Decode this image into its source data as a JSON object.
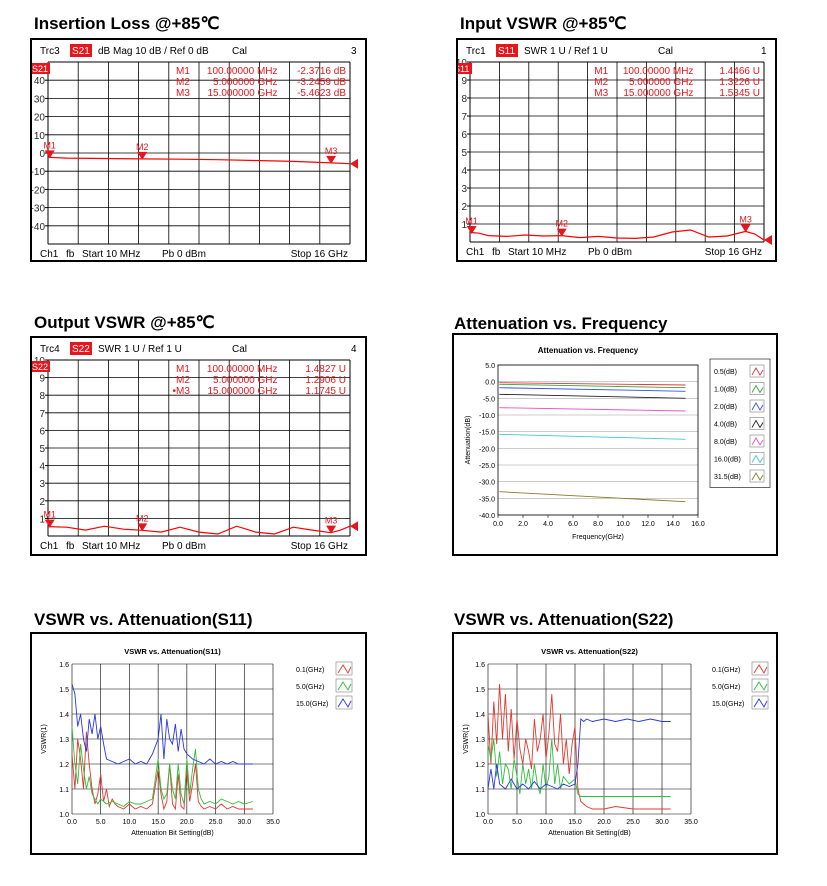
{
  "colors": {
    "trace": "#ff0000",
    "marker": "#e8161c",
    "grid": "#000000",
    "vna_tick": "#2a2a2a",
    "lut_series": [
      "#e3382f",
      "#2fbf3a",
      "#2a37e6"
    ],
    "att_series": [
      "#e5333a",
      "#2fa43a",
      "#3650e6",
      "#222222",
      "#e84fd2",
      "#3cc9d6",
      "#8a7a2a"
    ]
  },
  "panels": [
    {
      "title": "Insertion Loss @+85℃",
      "chart_data": {
        "type": "line",
        "header": {
          "trace": "Trc3",
          "param": "S21",
          "fmt": "dB Mag",
          "scale": "10 dB /",
          "ref": "Ref 0 dB",
          "cal": "Cal",
          "chan": "3"
        },
        "y_ticks": [
          "40",
          "30",
          "20",
          "10",
          "0",
          "-10",
          "-20",
          "-30",
          "-40"
        ],
        "ylim": [
          -50,
          50
        ],
        "xlim": [
          0.01,
          16
        ],
        "x_unit": "GHz",
        "trace": [
          [
            0.01,
            -2.37
          ],
          [
            1,
            -2.8
          ],
          [
            3,
            -3.0
          ],
          [
            5,
            -3.25
          ],
          [
            7,
            -3.4
          ],
          [
            9,
            -3.7
          ],
          [
            11,
            -4.1
          ],
          [
            13,
            -4.6
          ],
          [
            15,
            -5.46
          ],
          [
            16,
            -5.9
          ]
        ],
        "markers": [
          {
            "name": "M1",
            "label": "M1",
            "x": "100.00000 MHz",
            "y": "-2.3716 dB",
            "xv": 0.1,
            "yv": -2.37
          },
          {
            "name": "M2",
            "label": "M2",
            "x": "5.000000 GHz",
            "y": "-3.2459 dB",
            "xv": 5,
            "yv": -3.25
          },
          {
            "name": "M3",
            "label": "M3",
            "x": "15.000000 GHz",
            "y": "-5.4623 dB",
            "xv": 15,
            "yv": -5.46
          }
        ],
        "footer": {
          "ch": "Ch1",
          "fb": "fb",
          "start": "Start 10 MHz",
          "pb": "Pb 0 dBm",
          "stop": "Stop 16 GHz"
        }
      }
    },
    {
      "title": "Input VSWR @+85℃",
      "chart_data": {
        "type": "line",
        "header": {
          "trace": "Trc1",
          "param": "S11",
          "fmt": "SWR",
          "scale": "1 U /",
          "ref": "Ref 1 U",
          "cal": "Cal",
          "chan": "1"
        },
        "y_ticks": [
          "10",
          "9",
          "8",
          "7",
          "6",
          "5",
          "4",
          "3",
          "2",
          "1"
        ],
        "ylim": [
          1,
          10
        ],
        "xlim": [
          0.01,
          16
        ],
        "x_unit": "GHz",
        "trace": [
          [
            0.01,
            1.48
          ],
          [
            0.5,
            1.44
          ],
          [
            1,
            1.32
          ],
          [
            2,
            1.28
          ],
          [
            3,
            1.35
          ],
          [
            4,
            1.3
          ],
          [
            5,
            1.32
          ],
          [
            6,
            1.22
          ],
          [
            7,
            1.28
          ],
          [
            8,
            1.2
          ],
          [
            9,
            1.18
          ],
          [
            10,
            1.25
          ],
          [
            11,
            1.5
          ],
          [
            12,
            1.6
          ],
          [
            13,
            1.25
          ],
          [
            14,
            1.3
          ],
          [
            15,
            1.53
          ],
          [
            15.5,
            1.4
          ],
          [
            16,
            1.1
          ]
        ],
        "markers": [
          {
            "name": "M1",
            "label": "M1",
            "x": "100.00000 MHz",
            "y": "1.4466 U",
            "xv": 0.1,
            "yv": 1.45
          },
          {
            "name": "M2",
            "label": "M2",
            "x": "5.000000 GHz",
            "y": "1.3226 U",
            "xv": 5,
            "yv": 1.32
          },
          {
            "name": "M3",
            "label": "M3",
            "x": "15.000000 GHz",
            "y": "1.5345 U",
            "xv": 15,
            "yv": 1.53
          }
        ],
        "footer": {
          "ch": "Ch1",
          "fb": "fb",
          "start": "Start 10 MHz",
          "pb": "Pb 0 dBm",
          "stop": "Stop 16 GHz"
        }
      }
    },
    {
      "title": "Output VSWR @+85℃",
      "chart_data": {
        "type": "line",
        "header": {
          "trace": "Trc4",
          "param": "S22",
          "fmt": "SWR",
          "scale": "1 U /",
          "ref": "Ref 1 U",
          "cal": "Cal",
          "chan": "4"
        },
        "y_ticks": [
          "10",
          "9",
          "8",
          "7",
          "6",
          "5",
          "4",
          "3",
          "2",
          "1"
        ],
        "ylim": [
          1,
          10
        ],
        "xlim": [
          0.01,
          16
        ],
        "x_unit": "GHz",
        "trace": [
          [
            0.01,
            1.48
          ],
          [
            1,
            1.45
          ],
          [
            2,
            1.3
          ],
          [
            3,
            1.5
          ],
          [
            4,
            1.35
          ],
          [
            5,
            1.29
          ],
          [
            6,
            1.2
          ],
          [
            7,
            1.45
          ],
          [
            8,
            1.2
          ],
          [
            9,
            1.1
          ],
          [
            10,
            1.5
          ],
          [
            11,
            1.2
          ],
          [
            12,
            1.1
          ],
          [
            13,
            1.45
          ],
          [
            14,
            1.3
          ],
          [
            15,
            1.17
          ],
          [
            15.5,
            1.3
          ],
          [
            16,
            1.5
          ]
        ],
        "markers": [
          {
            "name": "M1",
            "label": "M1",
            "x": "100.00000 MHz",
            "y": "1.4827 U",
            "xv": 0.1,
            "yv": 1.48
          },
          {
            "name": "M2",
            "label": "M2",
            "x": "5.000000 GHz",
            "y": "1.2906 U",
            "xv": 5,
            "yv": 1.29
          },
          {
            "name": "M3",
            "label": "•M3",
            "x": "15.000000 GHz",
            "y": "1.1745 U",
            "xv": 15,
            "yv": 1.17
          }
        ],
        "footer": {
          "ch": "Ch1",
          "fb": "fb",
          "start": "Start 10 MHz",
          "pb": "Pb 0 dBm",
          "stop": "Stop 16 GHz"
        }
      }
    }
  ],
  "attenuation": {
    "title": "Attenuation vs. Frequency",
    "chart_data": {
      "type": "line",
      "title": "Attenuation vs. Frequency",
      "xlabel": "Frequency(GHz)",
      "ylabel": "Attenuation(dB)",
      "xlim": [
        0,
        16
      ],
      "ylim": [
        -40,
        5
      ],
      "x_ticks": [
        "0.0",
        "2.0",
        "4.0",
        "6.0",
        "8.0",
        "10.0",
        "12.0",
        "14.0",
        "16.0"
      ],
      "y_ticks": [
        "5.0",
        "0.0",
        "-5.0",
        "-10.0",
        "-15.0",
        "-20.0",
        "-25.0",
        "-30.0",
        "-35.0",
        "-40.0"
      ],
      "series": [
        {
          "name": "0.5(dB)",
          "x": [
            0.1,
            15
          ],
          "values": [
            -0.3,
            -1.0
          ]
        },
        {
          "name": "1.0(dB)",
          "x": [
            0.1,
            15
          ],
          "values": [
            -0.8,
            -1.8
          ]
        },
        {
          "name": "2.0(dB)",
          "x": [
            0.1,
            15
          ],
          "values": [
            -1.8,
            -2.9
          ]
        },
        {
          "name": "4.0(dB)",
          "x": [
            0.1,
            15
          ],
          "values": [
            -3.8,
            -5.0
          ]
        },
        {
          "name": "8.0(dB)",
          "x": [
            0.1,
            15
          ],
          "values": [
            -7.8,
            -8.8
          ]
        },
        {
          "name": "16.0(dB)",
          "x": [
            0.1,
            15
          ],
          "values": [
            -15.8,
            -17.3
          ]
        },
        {
          "name": "31.5(dB)",
          "x": [
            0.1,
            15
          ],
          "values": [
            -33.0,
            -36.0
          ]
        }
      ]
    }
  },
  "vswr_s11": {
    "title": "VSWR vs. Attenuation(S11)",
    "chart_data": {
      "type": "line",
      "title": "VSWR vs. Attenuation(S11)",
      "xlabel": "Attenuation Bit Setting(dB)",
      "ylabel": "VSWR(1)",
      "xlim": [
        0,
        35
      ],
      "ylim": [
        1.0,
        1.6
      ],
      "x_ticks": [
        "0.0",
        "5.0",
        "10.0",
        "15.0",
        "20.0",
        "25.0",
        "30.0",
        "35.0"
      ],
      "y_ticks": [
        "1.6",
        "1.5",
        "1.4",
        "1.3",
        "1.2",
        "1.1",
        "1.0"
      ],
      "series": [
        {
          "name": "0.1(GHz)",
          "x": [
            0,
            0.5,
            1,
            1.5,
            2,
            2.5,
            3,
            3.5,
            4,
            4.5,
            5,
            5.5,
            6,
            6.5,
            7,
            7.5,
            8,
            9,
            10,
            11,
            12,
            13,
            14,
            15,
            15.5,
            16,
            16.5,
            17,
            17.5,
            18,
            18.5,
            19,
            19.5,
            20,
            20.5,
            21,
            21.5,
            22,
            22.5,
            23,
            24,
            25,
            26,
            27,
            28,
            29,
            30,
            31.5
          ],
          "values": [
            1.24,
            1.1,
            1.3,
            1.22,
            1.1,
            1.33,
            1.2,
            1.1,
            1.04,
            1.08,
            1.16,
            1.05,
            1.1,
            1.03,
            1.06,
            1.04,
            1.03,
            1.02,
            1.04,
            1.02,
            1.03,
            1.02,
            1.04,
            1.18,
            1.08,
            1.02,
            1.05,
            1.2,
            1.04,
            1.02,
            1.16,
            1.03,
            1.02,
            1.18,
            1.05,
            1.12,
            1.2,
            1.05,
            1.03,
            1.02,
            1.03,
            1.02,
            1.04,
            1.02,
            1.03,
            1.02,
            1.02,
            1.02
          ]
        },
        {
          "name": "5.0(GHz)",
          "x": [
            0,
            0.5,
            1,
            1.5,
            2,
            2.5,
            3,
            3.5,
            4,
            4.5,
            5,
            6,
            7,
            8,
            9,
            10,
            11,
            12,
            13,
            14,
            15,
            15.5,
            16,
            16.5,
            17,
            17.5,
            18,
            18.5,
            19,
            19.5,
            20,
            20.5,
            21,
            21.5,
            22,
            22.5,
            23,
            24,
            25,
            26,
            27,
            28,
            29,
            30,
            31.5
          ],
          "values": [
            1.35,
            1.2,
            1.12,
            1.28,
            1.18,
            1.1,
            1.15,
            1.08,
            1.06,
            1.04,
            1.06,
            1.04,
            1.05,
            1.04,
            1.03,
            1.05,
            1.04,
            1.04,
            1.05,
            1.06,
            1.22,
            1.1,
            1.06,
            1.08,
            1.2,
            1.1,
            1.06,
            1.2,
            1.08,
            1.04,
            1.22,
            1.08,
            1.18,
            1.26,
            1.1,
            1.06,
            1.04,
            1.05,
            1.04,
            1.06,
            1.05,
            1.04,
            1.05,
            1.04,
            1.05
          ]
        },
        {
          "name": "15.0(GHz)",
          "x": [
            0,
            0.5,
            1,
            1.5,
            2,
            2.5,
            3,
            3.5,
            4,
            4.5,
            5,
            5.5,
            6,
            7,
            8,
            9,
            10,
            11,
            12,
            13,
            14,
            15,
            15.5,
            16,
            16.5,
            17,
            17.5,
            18,
            18.5,
            19,
            19.5,
            20,
            21,
            22,
            23,
            24,
            25,
            26,
            27,
            28,
            29,
            30,
            31.5
          ],
          "values": [
            1.52,
            1.48,
            1.35,
            1.4,
            1.3,
            1.25,
            1.38,
            1.32,
            1.4,
            1.3,
            1.35,
            1.28,
            1.22,
            1.21,
            1.2,
            1.21,
            1.22,
            1.2,
            1.21,
            1.2,
            1.24,
            1.3,
            1.4,
            1.22,
            1.38,
            1.3,
            1.28,
            1.36,
            1.25,
            1.34,
            1.26,
            1.24,
            1.22,
            1.21,
            1.2,
            1.22,
            1.2,
            1.21,
            1.2,
            1.21,
            1.2,
            1.2,
            1.2
          ]
        }
      ]
    }
  },
  "vswr_s22": {
    "title": "VSWR vs. Attenuation(S22)",
    "chart_data": {
      "type": "line",
      "title": "VSWR vs. Attenuation(S22)",
      "xlabel": "Attenuation Bit Setting(dB)",
      "ylabel": "VSWR(1)",
      "xlim": [
        0,
        35
      ],
      "ylim": [
        1.0,
        1.6
      ],
      "x_ticks": [
        "0.0",
        "5.0",
        "10.0",
        "15.0",
        "20.0",
        "25.0",
        "30.0",
        "35.0"
      ],
      "y_ticks": [
        "1.6",
        "1.5",
        "1.4",
        "1.3",
        "1.2",
        "1.1",
        "1.0"
      ],
      "series": [
        {
          "name": "0.1(GHz)",
          "x": [
            0,
            0.5,
            1,
            1.5,
            2,
            2.5,
            3,
            3.5,
            4,
            4.5,
            5,
            5.5,
            6,
            6.5,
            7,
            7.5,
            8,
            8.5,
            9,
            9.5,
            10,
            10.5,
            11,
            11.5,
            12,
            12.5,
            13,
            13.5,
            14,
            14.5,
            15,
            15.5,
            16,
            17,
            18,
            20,
            22,
            25,
            28,
            31.5
          ],
          "values": [
            1.4,
            1.2,
            1.45,
            1.28,
            1.52,
            1.3,
            1.48,
            1.25,
            1.42,
            1.22,
            1.38,
            1.26,
            1.2,
            1.3,
            1.25,
            1.18,
            1.38,
            1.25,
            1.3,
            1.4,
            1.22,
            1.32,
            1.48,
            1.28,
            1.25,
            1.4,
            1.2,
            1.3,
            1.16,
            1.28,
            1.35,
            1.1,
            1.05,
            1.03,
            1.02,
            1.02,
            1.03,
            1.02,
            1.02,
            1.02
          ]
        },
        {
          "name": "5.0(GHz)",
          "x": [
            0,
            0.5,
            1,
            1.5,
            2,
            2.5,
            3,
            3.5,
            4,
            4.5,
            5,
            5.5,
            6,
            6.5,
            7,
            7.5,
            8,
            8.5,
            9,
            9.5,
            10,
            10.5,
            11,
            11.5,
            12,
            12.5,
            13,
            14,
            15,
            15.5,
            16,
            17,
            18,
            20,
            22,
            25,
            28,
            31.5
          ],
          "values": [
            1.28,
            1.22,
            1.3,
            1.15,
            1.25,
            1.12,
            1.2,
            1.18,
            1.1,
            1.22,
            1.15,
            1.08,
            1.2,
            1.12,
            1.18,
            1.1,
            1.2,
            1.12,
            1.08,
            1.2,
            1.1,
            1.15,
            1.3,
            1.12,
            1.2,
            1.1,
            1.15,
            1.12,
            1.14,
            1.08,
            1.07,
            1.07,
            1.07,
            1.07,
            1.07,
            1.07,
            1.07,
            1.07
          ]
        },
        {
          "name": "15.0(GHz)",
          "x": [
            0,
            0.5,
            1,
            1.5,
            2,
            3,
            4,
            5,
            6,
            7,
            8,
            9,
            10,
            11,
            12,
            13,
            14,
            15,
            15.5,
            16,
            16.5,
            17,
            18,
            20,
            22,
            24,
            26,
            28,
            30,
            31.5
          ],
          "values": [
            1.1,
            1.18,
            1.1,
            1.2,
            1.12,
            1.1,
            1.14,
            1.1,
            1.12,
            1.1,
            1.13,
            1.1,
            1.12,
            1.11,
            1.1,
            1.12,
            1.11,
            1.12,
            1.2,
            1.38,
            1.37,
            1.38,
            1.37,
            1.38,
            1.37,
            1.38,
            1.37,
            1.38,
            1.37,
            1.37
          ]
        }
      ]
    }
  }
}
